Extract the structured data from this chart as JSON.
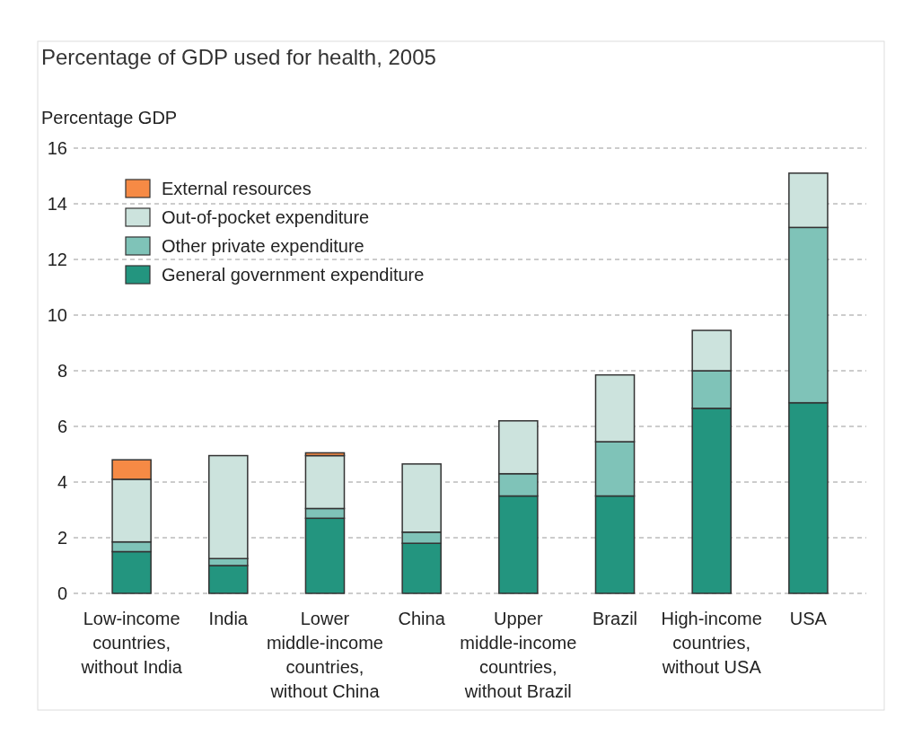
{
  "chart_data": {
    "type": "bar",
    "title": "Percentage of GDP used for health, 2005",
    "ylabel": "Percentage GDP",
    "categories": [
      "Low-income countries, without India",
      "India",
      "Lower middle-income countries, without China",
      "China",
      "Upper middle-income countries, without Brazil",
      "Brazil",
      "High-income countries, without USA",
      "USA"
    ],
    "stacked": true,
    "series": [
      {
        "name": "General government expenditure",
        "color": "#23957f",
        "values": [
          1.5,
          1.0,
          2.7,
          1.8,
          3.5,
          3.5,
          6.65,
          6.85
        ]
      },
      {
        "name": "Other private expenditure",
        "color": "#7fc3b8",
        "values": [
          0.35,
          0.25,
          0.35,
          0.4,
          0.8,
          1.95,
          1.35,
          6.3
        ]
      },
      {
        "name": "Out-of-pocket expenditure",
        "color": "#cce3dd",
        "values": [
          2.25,
          3.7,
          1.9,
          2.45,
          1.9,
          2.4,
          1.45,
          1.95
        ]
      },
      {
        "name": "External resources",
        "color": "#f68a45",
        "values": [
          0.7,
          0,
          0.1,
          0,
          0,
          0,
          0,
          0
        ]
      }
    ],
    "ylim": [
      0,
      16
    ],
    "yticks": [
      0,
      2,
      4,
      6,
      8,
      10,
      12,
      14,
      16
    ],
    "grid": "y",
    "legend": "top left"
  }
}
